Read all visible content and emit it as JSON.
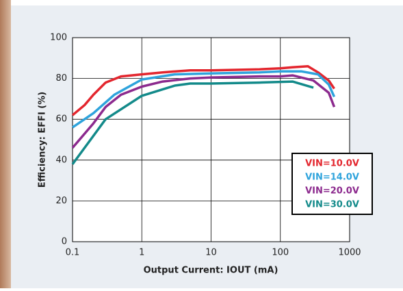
{
  "chart_data": {
    "type": "line",
    "x_label": "Output Current: IOUT (mA)",
    "y_label": "Efficiency: EFFI (%)",
    "xscale": "log",
    "xlim": [
      0.1,
      1000
    ],
    "xticks": [
      0.1,
      1,
      10,
      100,
      1000
    ],
    "ylim": [
      0,
      100
    ],
    "yticks": [
      0,
      20,
      40,
      60,
      80,
      100
    ],
    "grid": true,
    "legend": "lower right",
    "series": [
      {
        "name": "VIN=10.0V",
        "color": "#e3262e",
        "x": [
          0.1,
          0.15,
          0.2,
          0.3,
          0.5,
          1,
          2,
          5,
          10,
          50,
          100,
          150,
          250,
          350,
          500,
          600
        ],
        "values": [
          62,
          67,
          72,
          78,
          81,
          82,
          83,
          84,
          84,
          84.5,
          85,
          85.5,
          86,
          83,
          79,
          75
        ]
      },
      {
        "name": "VIN=14.0V",
        "color": "#2ea3dc",
        "x": [
          0.1,
          0.2,
          0.4,
          1,
          3,
          10,
          50,
          100,
          200,
          350,
          500,
          600
        ],
        "values": [
          56,
          63,
          72,
          79.5,
          82,
          82.5,
          83,
          83.5,
          83.5,
          82,
          77,
          71
        ]
      },
      {
        "name": "VIN=20.0V",
        "color": "#8c2a8e",
        "x": [
          0.1,
          0.2,
          0.3,
          0.5,
          1,
          2,
          5,
          10,
          50,
          100,
          150,
          300,
          500,
          600
        ],
        "values": [
          46,
          58,
          66,
          72,
          76,
          78.5,
          80,
          80.5,
          81,
          81,
          81.5,
          79,
          73,
          66
        ]
      },
      {
        "name": "VIN=30.0V",
        "color": "#138a8a",
        "x": [
          0.1,
          0.3,
          1,
          3,
          5,
          10,
          50,
          150,
          300
        ],
        "values": [
          38,
          60,
          71.5,
          76.5,
          77.5,
          77.5,
          78,
          78.5,
          75.5
        ]
      }
    ]
  }
}
